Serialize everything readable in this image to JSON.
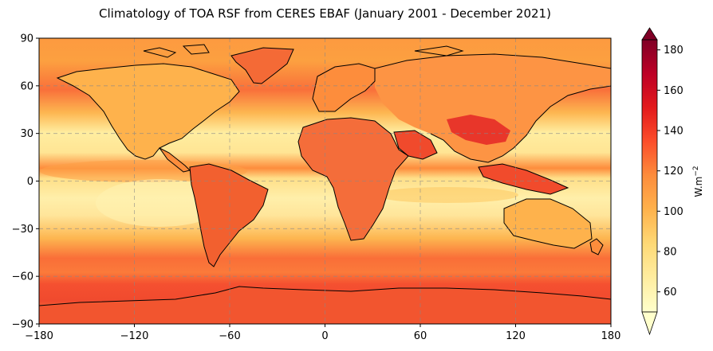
{
  "title": "Climatology of TOA RSF from CERES EBAF (January 2001 - December 2021)",
  "map": {
    "projection": "PlateCarree",
    "xticks": [
      -180,
      -120,
      -60,
      0,
      60,
      120,
      180
    ],
    "yticks": [
      90,
      60,
      30,
      0,
      -30,
      -60,
      -90
    ],
    "xlim": [
      -180,
      180
    ],
    "ylim": [
      -90,
      90
    ],
    "gridlines": true,
    "coastlines": true,
    "colormap": "YlOrRd"
  },
  "colorbar": {
    "label": "W.m",
    "label_superscript": "−2",
    "ticks": [
      60,
      80,
      100,
      120,
      140,
      160,
      180
    ],
    "range": [
      50,
      185
    ],
    "extend": "both",
    "colors": [
      "#ffffcc",
      "#ffeda0",
      "#fed976",
      "#feb24c",
      "#fd8d3c",
      "#fc4e2a",
      "#e31a1c",
      "#bd0026",
      "#800026"
    ]
  }
}
